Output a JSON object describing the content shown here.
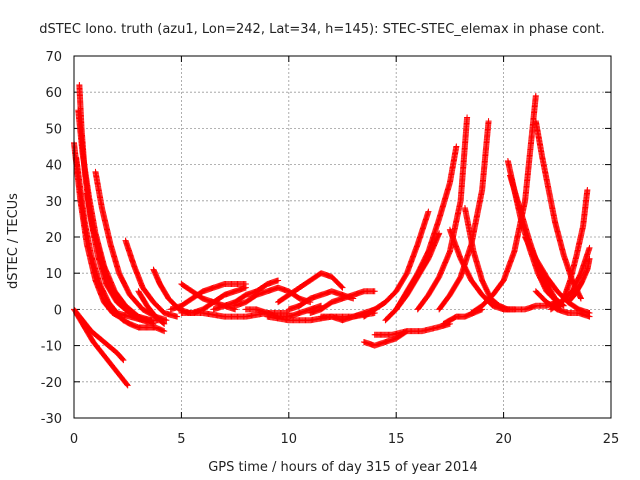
{
  "chart_data": {
    "type": "scatter",
    "title": "dSTEC Iono. truth (azu1, Lon=242, Lat=34, h=145): STEC-STEC_elemax in phase cont.",
    "xlabel": "GPS time / hours of day 315 of year 2014",
    "ylabel": "dSTEC  / TECUs",
    "xlim": [
      0,
      25
    ],
    "ylim": [
      -30,
      70
    ],
    "xticks": [
      "0",
      "5",
      "10",
      "15",
      "20",
      "25"
    ],
    "yticks": [
      "-30",
      "-20",
      "-10",
      "0",
      "10",
      "20",
      "30",
      "40",
      "50",
      "60",
      "70"
    ],
    "grid": true,
    "marker": "plus",
    "color": "#ff0000",
    "series": [
      {
        "x": [
          0.0,
          0.3,
          0.6,
          1.0,
          1.4,
          1.8,
          2.1,
          2.3
        ],
        "y": [
          46,
          30,
          18,
          8,
          2,
          -1,
          -2,
          -3
        ]
      },
      {
        "x": [
          0.1,
          0.3,
          0.5,
          0.8,
          1.2,
          1.6,
          2.0,
          2.6,
          3.2
        ],
        "y": [
          42,
          33,
          24,
          15,
          7,
          2,
          -1,
          -2,
          -3
        ]
      },
      {
        "x": [
          0.25,
          0.35,
          0.5,
          0.75,
          1.1,
          1.5,
          2.0,
          2.6,
          3.2,
          3.7
        ],
        "y": [
          62,
          50,
          38,
          26,
          15,
          7,
          2,
          -1,
          -3,
          -4
        ]
      },
      {
        "x": [
          0.2,
          0.4,
          0.7,
          1.0,
          1.4,
          1.9,
          2.4,
          3.0,
          3.6
        ],
        "y": [
          55,
          43,
          31,
          21,
          12,
          5,
          1,
          -2,
          -3
        ]
      },
      {
        "x": [
          1.0,
          1.3,
          1.7,
          2.1,
          2.6,
          3.2,
          3.8,
          4.3
        ],
        "y": [
          38,
          28,
          18,
          10,
          4,
          0,
          -2,
          -3
        ]
      },
      {
        "x": [
          0.6,
          0.9,
          1.3,
          1.7,
          2.2,
          2.8,
          3.4,
          4.0
        ],
        "y": [
          32,
          22,
          13,
          6,
          1,
          -2,
          -3,
          -3
        ]
      },
      {
        "x": [
          2.4,
          2.8,
          3.2,
          3.7,
          4.2,
          4.8
        ],
        "y": [
          19,
          12,
          6,
          2,
          -1,
          -2
        ]
      },
      {
        "x": [
          3.7,
          4.0,
          4.4,
          4.9,
          5.4
        ],
        "y": [
          11,
          7,
          3,
          0,
          -1
        ]
      },
      {
        "x": [
          3.0,
          3.4,
          3.8,
          4.2
        ],
        "y": [
          5,
          1,
          -2,
          -4
        ]
      },
      {
        "x": [
          0.0,
          0.4,
          0.8,
          1.2,
          1.6,
          2.0,
          2.3
        ],
        "y": [
          0,
          -3,
          -6,
          -8,
          -10,
          -12,
          -14
        ]
      },
      {
        "x": [
          0.1,
          0.5,
          0.9,
          1.3,
          1.7,
          2.1,
          2.5
        ],
        "y": [
          -1,
          -5,
          -9,
          -12,
          -15,
          -18,
          -21
        ]
      },
      {
        "x": [
          2.0,
          2.3,
          2.6,
          3.0,
          3.4,
          3.8,
          4.2
        ],
        "y": [
          -1,
          -3,
          -4,
          -5,
          -5,
          -5,
          -6
        ]
      },
      {
        "x": [
          5.0,
          5.5,
          6.0,
          6.5,
          7.0,
          7.5
        ],
        "y": [
          7,
          5,
          3,
          2,
          1,
          0
        ]
      },
      {
        "x": [
          4.5,
          5.0,
          5.5,
          6.0,
          6.5,
          7.0,
          7.5,
          8.0
        ],
        "y": [
          0,
          1,
          3,
          5,
          6,
          7,
          7,
          7
        ]
      },
      {
        "x": [
          5.5,
          6.0,
          6.5,
          7.0,
          7.5,
          8.0
        ],
        "y": [
          -1,
          0,
          2,
          4,
          5,
          6
        ]
      },
      {
        "x": [
          6.5,
          7.0,
          7.5,
          8.0,
          8.5,
          9.0,
          9.5
        ],
        "y": [
          0,
          1,
          2,
          4,
          5,
          7,
          8
        ]
      },
      {
        "x": [
          5.0,
          6.0,
          7.0,
          8.0,
          9.0,
          10.0
        ],
        "y": [
          -1,
          -1,
          -2,
          -2,
          -1,
          -1
        ]
      },
      {
        "x": [
          7.5,
          8.0,
          8.5,
          9.0,
          9.5,
          10.0,
          10.5,
          11.0
        ],
        "y": [
          1,
          2,
          4,
          5,
          6,
          5,
          3,
          2
        ]
      },
      {
        "x": [
          8.0,
          8.5,
          9.0,
          9.5,
          10.0,
          10.5,
          11.0,
          11.5
        ],
        "y": [
          0,
          0,
          -1,
          -2,
          -2,
          -1,
          0,
          1
        ]
      },
      {
        "x": [
          9.5,
          10.0,
          10.5,
          11.0,
          11.5,
          12.0,
          12.5
        ],
        "y": [
          2,
          4,
          6,
          8,
          10,
          9,
          6
        ]
      },
      {
        "x": [
          10.0,
          10.5,
          11.0,
          11.5,
          12.0,
          12.5,
          13.0
        ],
        "y": [
          0,
          1,
          3,
          4,
          5,
          4,
          3
        ]
      },
      {
        "x": [
          11.0,
          11.5,
          12.0,
          12.5,
          13.0,
          13.5,
          14.0
        ],
        "y": [
          -1,
          0,
          2,
          3,
          4,
          5,
          5
        ]
      },
      {
        "x": [
          9.0,
          10.0,
          11.0,
          12.0,
          13.0,
          14.0
        ],
        "y": [
          -2,
          -3,
          -3,
          -2,
          -2,
          -1
        ]
      },
      {
        "x": [
          11.5,
          12.0,
          12.5,
          13.0,
          13.5,
          14.0
        ],
        "y": [
          -2,
          -2,
          -3,
          -2,
          -1,
          0
        ]
      },
      {
        "x": [
          13.5,
          14.0,
          14.5,
          15.0,
          15.5
        ],
        "y": [
          -9,
          -10,
          -9,
          -8,
          -6
        ]
      },
      {
        "x": [
          13.5,
          14.0,
          14.5,
          15.0,
          15.5,
          16.0,
          16.5
        ],
        "y": [
          -2,
          0,
          2,
          5,
          10,
          18,
          27
        ]
      },
      {
        "x": [
          14.5,
          15.0,
          15.5,
          16.0,
          16.5,
          17.0
        ],
        "y": [
          -3,
          0,
          4,
          9,
          14,
          21
        ]
      },
      {
        "x": [
          14.0,
          14.8,
          15.5,
          16.2,
          16.9,
          17.5
        ],
        "y": [
          -7,
          -7,
          -6,
          -6,
          -5,
          -4
        ]
      },
      {
        "x": [
          15.0,
          15.5,
          16.0,
          16.5,
          17.0,
          17.5,
          17.8
        ],
        "y": [
          0,
          5,
          10,
          16,
          25,
          35,
          45
        ]
      },
      {
        "x": [
          16.0,
          16.5,
          17.0,
          17.5,
          18.0,
          18.3
        ],
        "y": [
          0,
          4,
          9,
          16,
          30,
          53
        ]
      },
      {
        "x": [
          17.2,
          17.5,
          17.8,
          18.2,
          18.6,
          19.0
        ],
        "y": [
          -4,
          -3,
          -2,
          -2,
          -1,
          0
        ]
      },
      {
        "x": [
          17.0,
          17.5,
          18.0,
          18.5,
          19.0,
          19.3
        ],
        "y": [
          0,
          4,
          9,
          18,
          33,
          52
        ]
      },
      {
        "x": [
          17.5,
          18.0,
          18.5,
          19.0,
          19.5,
          20.0,
          20.5
        ],
        "y": [
          22,
          14,
          8,
          4,
          1,
          0,
          0
        ]
      },
      {
        "x": [
          18.2,
          18.6,
          19.0,
          19.4,
          19.8,
          20.2
        ],
        "y": [
          28,
          16,
          8,
          3,
          1,
          0
        ]
      },
      {
        "x": [
          18.5,
          19.0,
          19.5,
          20.0,
          20.5,
          21.0,
          21.5
        ],
        "y": [
          -1,
          1,
          4,
          8,
          16,
          30,
          59
        ]
      },
      {
        "x": [
          20.2,
          20.5,
          20.8,
          21.2,
          21.6,
          22.0,
          22.5
        ],
        "y": [
          41,
          33,
          25,
          17,
          10,
          5,
          2
        ]
      },
      {
        "x": [
          20.3,
          20.8,
          21.2,
          21.6,
          22.0,
          22.4,
          22.8
        ],
        "y": [
          37,
          27,
          19,
          12,
          7,
          3,
          1
        ]
      },
      {
        "x": [
          21.5,
          21.8,
          22.1,
          22.4,
          22.8,
          23.2,
          23.6
        ],
        "y": [
          52,
          42,
          33,
          24,
          15,
          8,
          3
        ]
      },
      {
        "x": [
          20.0,
          20.5,
          21.0,
          21.5,
          22.0,
          22.5
        ],
        "y": [
          0,
          0,
          0,
          1,
          1,
          2
        ]
      },
      {
        "x": [
          22.5,
          22.8,
          23.1,
          23.4,
          23.7,
          23.9
        ],
        "y": [
          0,
          3,
          8,
          15,
          23,
          33
        ]
      },
      {
        "x": [
          22.2,
          22.7,
          23.2,
          23.6,
          24.0
        ],
        "y": [
          0,
          2,
          5,
          10,
          17
        ]
      },
      {
        "x": [
          21.5,
          22.0,
          22.5,
          23.0,
          23.5,
          24.0
        ],
        "y": [
          5,
          2,
          0,
          -1,
          -1,
          -2
        ]
      },
      {
        "x": [
          21.0,
          21.5,
          22.0,
          22.5,
          23.0,
          23.5,
          24.0
        ],
        "y": [
          20,
          14,
          9,
          5,
          2,
          0,
          -1
        ]
      },
      {
        "x": [
          23.0,
          23.3,
          23.6,
          23.9,
          24.0
        ],
        "y": [
          2,
          4,
          7,
          11,
          14
        ]
      }
    ]
  }
}
